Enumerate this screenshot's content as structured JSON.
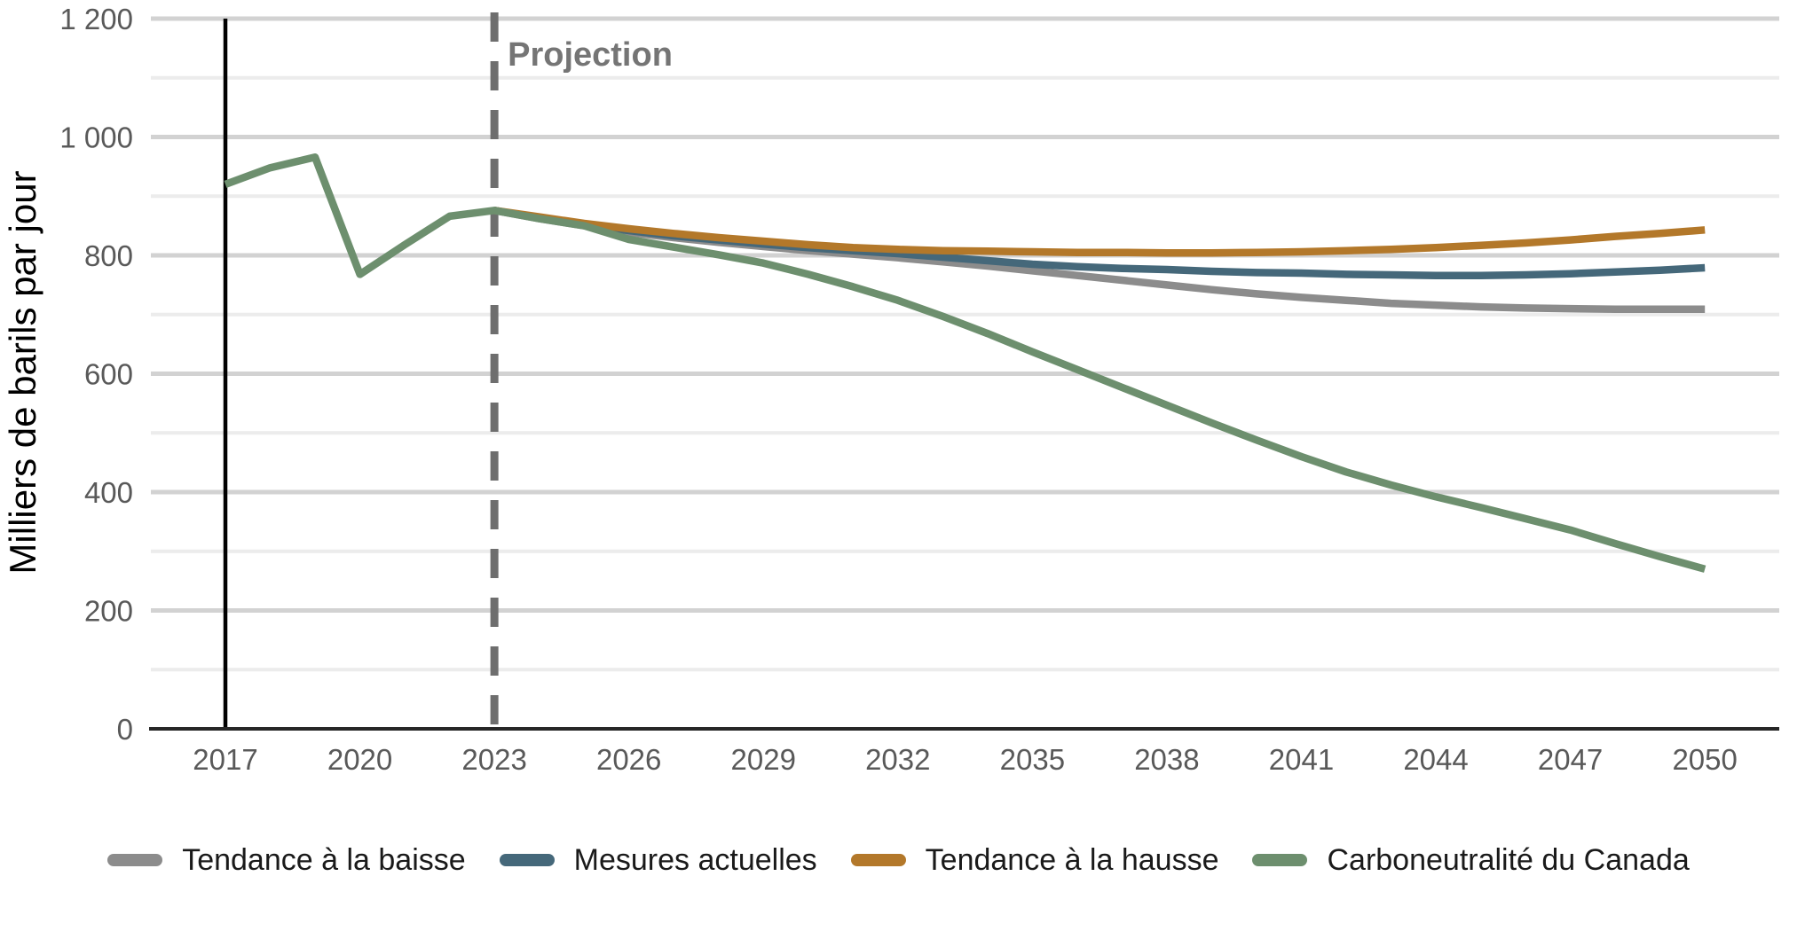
{
  "figure": {
    "projection_label": "Projection",
    "y_axis_title": "Milliers de barils par jour"
  },
  "chart_data": {
    "type": "line",
    "title": "",
    "xlabel": "",
    "ylabel": "Milliers de barils par jour",
    "ylim": [
      0,
      1200
    ],
    "xlim": [
      2015.3,
      2051.6
    ],
    "grid": "horizontal",
    "legend_position": "bottom",
    "y_major_ticks": [
      0,
      200,
      400,
      600,
      800,
      1000,
      1200
    ],
    "y_tick_labels": [
      "0",
      "200",
      "400",
      "600",
      "800",
      "1 000",
      "1 200"
    ],
    "y_minor_gridlines": [
      100,
      300,
      500,
      700,
      900,
      1100
    ],
    "x_ticks": [
      2017,
      2020,
      2023,
      2026,
      2029,
      2032,
      2035,
      2038,
      2041,
      2044,
      2047,
      2050
    ],
    "annotations": {
      "history_line": {
        "x": 2017,
        "style": "solid",
        "color": "#000000"
      },
      "projection_line": {
        "x": 2023,
        "style": "dashed",
        "color": "#6e6e6e",
        "label": "Projection"
      }
    },
    "x": [
      2017,
      2018,
      2019,
      2020,
      2021,
      2022,
      2023,
      2024,
      2025,
      2026,
      2027,
      2028,
      2029,
      2030,
      2031,
      2032,
      2033,
      2034,
      2035,
      2036,
      2037,
      2038,
      2039,
      2040,
      2041,
      2042,
      2043,
      2044,
      2045,
      2046,
      2047,
      2048,
      2049,
      2050
    ],
    "series": [
      {
        "name": "Tendance à la baisse",
        "color": "#8c8c8c",
        "values": [
          null,
          null,
          null,
          null,
          null,
          null,
          876,
          862,
          850,
          839,
          830,
          822,
          815,
          808,
          802,
          796,
          789,
          782,
          774,
          766,
          758,
          750,
          742,
          735,
          729,
          724,
          719,
          716,
          713,
          711,
          710,
          709,
          709,
          709
        ]
      },
      {
        "name": "Mesures actuelles",
        "color": "#45687a",
        "values": [
          null,
          null,
          null,
          null,
          null,
          null,
          876,
          863,
          852,
          842,
          833,
          826,
          819,
          813,
          808,
          803,
          797,
          791,
          785,
          781,
          778,
          776,
          773,
          771,
          770,
          768,
          767,
          766,
          766,
          767,
          769,
          772,
          775,
          779
        ]
      },
      {
        "name": "Tendance à la hausse",
        "color": "#b3782a",
        "values": [
          null,
          null,
          null,
          null,
          null,
          null,
          876,
          865,
          854,
          845,
          837,
          830,
          824,
          818,
          813,
          810,
          808,
          807,
          806,
          805,
          805,
          804,
          804,
          805,
          806,
          808,
          810,
          813,
          817,
          821,
          826,
          832,
          837,
          843
        ]
      },
      {
        "name": "Carboneutralité du Canada",
        "color": "#6d8f6e",
        "values": [
          920,
          948,
          966,
          768,
          818,
          866,
          876,
          862,
          850,
          827,
          814,
          801,
          787,
          768,
          747,
          724,
          697,
          668,
          637,
          607,
          577,
          547,
          517,
          488,
          460,
          434,
          412,
          392,
          374,
          355,
          336,
          313,
          291,
          270
        ]
      }
    ]
  },
  "style": {
    "major_grid_color": "#d2d2d2",
    "minor_grid_color": "#ececec",
    "axis_color": "#262626",
    "tick_label_color": "#595959",
    "projection_text_color": "#757575"
  }
}
